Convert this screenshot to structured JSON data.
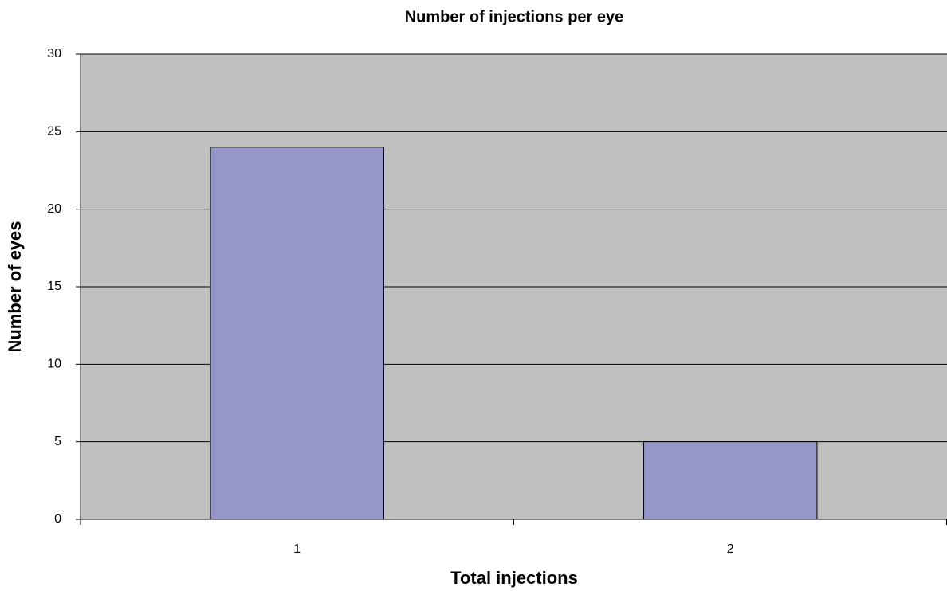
{
  "chart_data": {
    "type": "bar",
    "title": "Number of injections per eye",
    "x_label": "Total injections",
    "y_label": "Number of eyes",
    "categories": [
      "1",
      "2"
    ],
    "values": [
      24,
      5
    ],
    "color": "#9696c8",
    "ylim": [
      0,
      30
    ],
    "yticks": [
      0,
      5,
      10,
      15,
      20,
      25,
      30
    ],
    "grid": true
  }
}
